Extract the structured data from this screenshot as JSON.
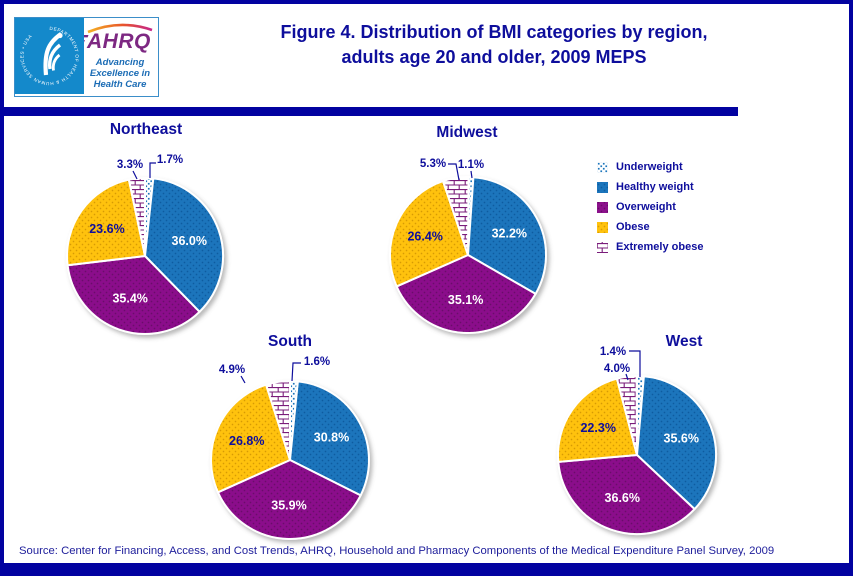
{
  "header": {
    "title_line1": "Figure 4. Distribution of BMI categories by region,",
    "title_line2": "adults age 20 and older, 2009 MEPS",
    "logo": {
      "seal_text": "DEPARTMENT OF HEALTH & HUMAN SERVICES • USA",
      "ahrq": "AHRQ",
      "tagline_line1": "Advancing",
      "tagline_line2": "Excellence in",
      "tagline_line3": "Health Care"
    }
  },
  "legend": {
    "items": [
      {
        "label": "Underweight",
        "swatch": "dotted-blue-on-white"
      },
      {
        "label": "Healthy weight",
        "swatch": "solid-blue-dotted"
      },
      {
        "label": "Overweight",
        "swatch": "solid-purple-dotted"
      },
      {
        "label": "Obese",
        "swatch": "solid-yellow-dotted"
      },
      {
        "label": "Extremely obese",
        "swatch": "brick-purple-on-white"
      }
    ]
  },
  "chart_data": {
    "type": "pie",
    "title": "Figure 4. Distribution of BMI categories by region, adults age 20 and older, 2009 MEPS",
    "categories": [
      "Underweight",
      "Healthy weight",
      "Overweight",
      "Obese",
      "Extremely obese"
    ],
    "unit": "%",
    "start_angle_deg": 0,
    "direction": "clockwise",
    "legend_position": "right",
    "charts": [
      {
        "region": "Northeast",
        "values": [
          1.7,
          36.0,
          35.4,
          23.6,
          3.3
        ]
      },
      {
        "region": "Midwest",
        "values": [
          1.1,
          32.2,
          35.1,
          26.4,
          5.3
        ]
      },
      {
        "region": "South",
        "values": [
          1.6,
          30.8,
          35.9,
          26.8,
          4.9
        ]
      },
      {
        "region": "West",
        "values": [
          1.4,
          35.6,
          36.6,
          22.3,
          4.0
        ]
      }
    ]
  },
  "footer": {
    "source": "Source: Center for Financing, Access, and Cost Trends, AHRQ, Household and Pharmacy Components of the Medical Expenditure Panel Survey,  2009"
  },
  "colors": {
    "navy_bar": "#0202A0",
    "navy_text": "#0E0E9C",
    "healthy_blue": "#1B75BC",
    "healthy_blue_dot": "#0F5CA0",
    "overweight_purple": "#8B118B",
    "overweight_purple_dot": "#6A0A6A",
    "obese_yellow": "#FFC20E",
    "obese_yellow_dot": "#D89B06",
    "brick_purple": "#7A1C7A",
    "inside_label_light": "#FFFFFF",
    "logo_blue": "#1489CB",
    "ahrq_purple": "#7D2882",
    "tagline_blue": "#1B6CB5"
  }
}
